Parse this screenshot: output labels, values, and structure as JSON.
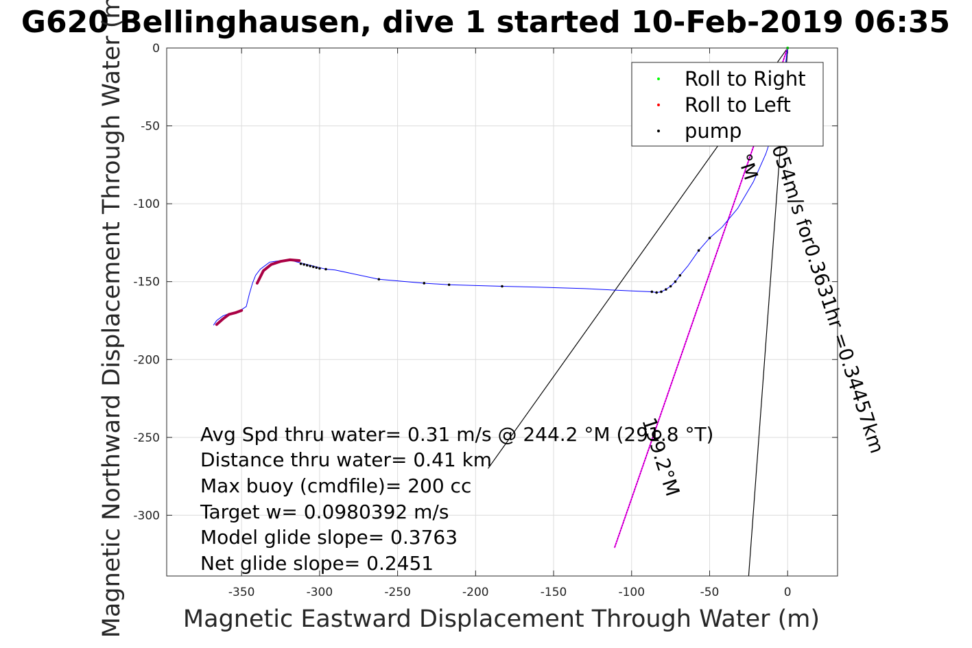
{
  "chart_data": {
    "type": "line",
    "title": "G620 Bellinghausen, dive 1 started 10-Feb-2019 06:35",
    "xlabel": "Magnetic Eastward Displacement Through Water (m)",
    "ylabel": "Magnetic Northward Displacement Through Water (m)",
    "xlim": [
      -398,
      32
    ],
    "ylim": [
      -339,
      0
    ],
    "xticks": [
      -350,
      -300,
      -250,
      -200,
      -150,
      -100,
      -50,
      0
    ],
    "yticks": [
      0,
      -50,
      -100,
      -150,
      -200,
      -250,
      -300
    ],
    "grid": true,
    "legend": {
      "placement": "top-right",
      "entries": [
        {
          "name": "Roll to Right",
          "color": "#00ff00"
        },
        {
          "name": "Roll to Left",
          "color": "#ff0000"
        },
        {
          "name": "pump",
          "color": "#000000"
        }
      ]
    },
    "track": {
      "color": "#0000ff",
      "x": [
        0,
        -2,
        -4,
        -8,
        -14,
        -22,
        -32,
        -42,
        -50,
        -57,
        -64,
        -69,
        -72,
        -75,
        -78,
        -81,
        -84,
        -87,
        -100,
        -130,
        -160,
        -183,
        -200,
        -217,
        -233,
        -262,
        -290,
        -296,
        -300,
        -304,
        -308,
        -312,
        -318,
        -325,
        -332,
        -338,
        -341,
        -343,
        -345,
        -347,
        -350,
        -354,
        -358,
        -362,
        -366,
        -368
      ],
      "y": [
        0,
        -15,
        -30,
        -50,
        -68,
        -86,
        -103,
        -115,
        -122,
        -130,
        -140,
        -146,
        -150,
        -153,
        -155,
        -156.5,
        -157,
        -156.5,
        -156,
        -154.5,
        -153.5,
        -153,
        -152.5,
        -152,
        -151,
        -148.5,
        -142.5,
        -142,
        -141,
        -140,
        -139,
        -138,
        -136.5,
        -136.5,
        -137.5,
        -142,
        -146,
        -151,
        -158,
        -166,
        -168,
        -170,
        -170.5,
        -172,
        -175,
        -178
      ]
    },
    "pump_points": {
      "color": "#000000",
      "x": [
        0,
        -50,
        -57,
        -69,
        -72,
        -75,
        -78,
        -81,
        -84,
        -87,
        -183,
        -217,
        -233,
        -262,
        -296,
        -300,
        -302,
        -304,
        -306,
        -308,
        -310,
        -312
      ],
      "y": [
        -10,
        -122,
        -130,
        -146,
        -150,
        -153,
        -155,
        -156.5,
        -157,
        -156.5,
        -153,
        -152,
        -151,
        -148.5,
        -142,
        -141.5,
        -141,
        -140.5,
        -140,
        -139.5,
        -139,
        -138.5
      ]
    },
    "roll_left_segments": {
      "color": "#aa0044",
      "segments": [
        {
          "x": [
            -340,
            -336,
            -331,
            -325,
            -319,
            -313
          ],
          "y": [
            -151,
            -143,
            -139,
            -137,
            -136,
            -136.5
          ]
        },
        {
          "x": [
            -366,
            -362,
            -358,
            -354,
            -350
          ],
          "y": [
            -177.5,
            -174,
            -171,
            -170,
            -168.5
          ]
        }
      ]
    },
    "heading_lines": {
      "color": "#000000",
      "lines": [
        {
          "x": [
            0,
            -192
          ],
          "y": [
            0,
            -270
          ]
        },
        {
          "x": [
            0,
            -25
          ],
          "y": [
            0,
            -339
          ]
        }
      ]
    },
    "current_vector": {
      "color": "#ff00ff",
      "x": [
        0,
        -111
      ],
      "y": [
        0,
        -321
      ]
    },
    "rotated_labels": [
      "054m/s for0.3631hr =0.34457km",
      "199.2°M",
      "°M"
    ],
    "annotations": [
      "Avg Spd thru water=  0.31 m/s @ 244.2 °M (291.8 °T)",
      "Distance thru water=  0.41 km",
      "Max buoy (cmdfile)= 200 cc",
      "Target w= 0.0980392 m/s",
      "Model glide slope= 0.3763",
      "Net glide slope= 0.2451"
    ]
  }
}
